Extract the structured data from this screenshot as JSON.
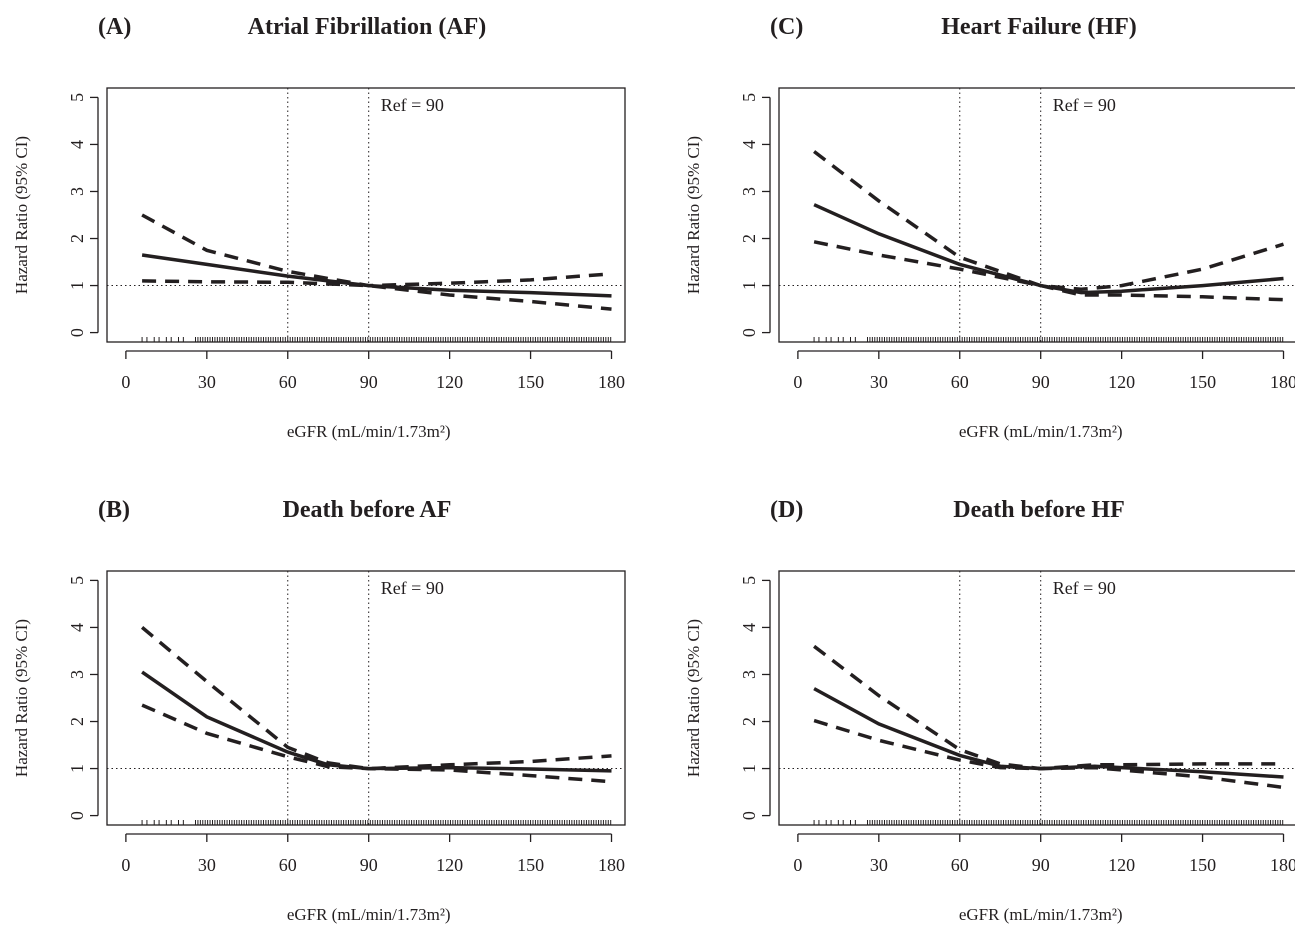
{
  "chart_data": [
    {
      "type": "line",
      "panel_letter": "(A)",
      "title": "Atrial Fibrillation (AF)",
      "xlabel": "eGFR (mL/min/1.73m²)",
      "ylabel": "Hazard Ratio (95% CI)",
      "xlim": [
        -7,
        185
      ],
      "ylim": [
        -0.2,
        5.2
      ],
      "xticks": [
        0,
        30,
        60,
        90,
        120,
        150,
        180
      ],
      "yticks": [
        0,
        1,
        2,
        3,
        4,
        5
      ],
      "reference_label": "Ref = 90",
      "vertical_lines": [
        60,
        90
      ],
      "horizontal_line": 1,
      "grid": false,
      "rug_range": [
        6,
        180
      ],
      "x": [
        6,
        30,
        60,
        90,
        120,
        150,
        180
      ],
      "series": [
        {
          "role": "estimate",
          "values": [
            1.65,
            1.45,
            1.2,
            1.0,
            0.9,
            0.85,
            0.78
          ]
        },
        {
          "role": "ci_upper",
          "values": [
            2.5,
            1.75,
            1.3,
            1.0,
            1.05,
            1.12,
            1.25
          ]
        },
        {
          "role": "ci_lower",
          "values": [
            1.1,
            1.08,
            1.07,
            1.0,
            0.8,
            0.66,
            0.5
          ]
        }
      ]
    },
    {
      "type": "line",
      "panel_letter": "(B)",
      "title": "Death before AF",
      "xlabel": "eGFR (mL/min/1.73m²)",
      "ylabel": "Hazard Ratio (95% CI)",
      "xlim": [
        -7,
        185
      ],
      "ylim": [
        -0.2,
        5.2
      ],
      "xticks": [
        0,
        30,
        60,
        90,
        120,
        150,
        180
      ],
      "yticks": [
        0,
        1,
        2,
        3,
        4,
        5
      ],
      "reference_label": "Ref = 90",
      "vertical_lines": [
        60,
        90
      ],
      "horizontal_line": 1,
      "grid": false,
      "rug_range": [
        6,
        180
      ],
      "x": [
        6,
        30,
        60,
        75,
        90,
        120,
        150,
        180
      ],
      "series": [
        {
          "role": "estimate",
          "values": [
            3.05,
            2.1,
            1.35,
            1.08,
            1.0,
            1.02,
            0.99,
            0.95
          ]
        },
        {
          "role": "ci_upper",
          "values": [
            4.0,
            2.85,
            1.45,
            1.12,
            1.0,
            1.08,
            1.15,
            1.27
          ]
        },
        {
          "role": "ci_lower",
          "values": [
            2.35,
            1.75,
            1.25,
            1.04,
            1.0,
            0.97,
            0.85,
            0.72
          ]
        }
      ]
    },
    {
      "type": "line",
      "panel_letter": "(C)",
      "title": "Heart Failure (HF)",
      "xlabel": "eGFR (mL/min/1.73m²)",
      "ylabel": "Hazard Ratio (95% CI)",
      "xlim": [
        -7,
        185
      ],
      "ylim": [
        -0.2,
        5.2
      ],
      "xticks": [
        0,
        30,
        60,
        90,
        120,
        150,
        180
      ],
      "yticks": [
        0,
        1,
        2,
        3,
        4,
        5
      ],
      "reference_label": "Ref = 90",
      "vertical_lines": [
        60,
        90
      ],
      "horizontal_line": 1,
      "grid": false,
      "rug_range": [
        6,
        180
      ],
      "x": [
        6,
        30,
        60,
        90,
        105,
        120,
        150,
        180
      ],
      "series": [
        {
          "role": "estimate",
          "values": [
            2.72,
            2.1,
            1.45,
            1.0,
            0.85,
            0.88,
            1.0,
            1.15
          ]
        },
        {
          "role": "ci_upper",
          "values": [
            3.85,
            2.8,
            1.6,
            1.0,
            0.92,
            1.0,
            1.35,
            1.88
          ]
        },
        {
          "role": "ci_lower",
          "values": [
            1.93,
            1.65,
            1.35,
            1.0,
            0.8,
            0.8,
            0.76,
            0.7
          ]
        }
      ]
    },
    {
      "type": "line",
      "panel_letter": "(D)",
      "title": "Death before HF",
      "xlabel": "eGFR (mL/min/1.73m²)",
      "ylabel": "Hazard Ratio (95% CI)",
      "xlim": [
        -7,
        185
      ],
      "ylim": [
        -0.2,
        5.2
      ],
      "xticks": [
        0,
        30,
        60,
        90,
        120,
        150,
        180
      ],
      "yticks": [
        0,
        1,
        2,
        3,
        4,
        5
      ],
      "reference_label": "Ref = 90",
      "vertical_lines": [
        60,
        90
      ],
      "horizontal_line": 1,
      "grid": false,
      "rug_range": [
        6,
        180
      ],
      "x": [
        6,
        30,
        60,
        75,
        90,
        110,
        120,
        150,
        180
      ],
      "series": [
        {
          "role": "estimate",
          "values": [
            2.7,
            1.95,
            1.28,
            1.05,
            1.0,
            1.05,
            1.02,
            0.93,
            0.82
          ]
        },
        {
          "role": "ci_upper",
          "values": [
            3.6,
            2.55,
            1.4,
            1.1,
            1.0,
            1.08,
            1.08,
            1.1,
            1.1
          ]
        },
        {
          "role": "ci_lower",
          "values": [
            2.02,
            1.6,
            1.18,
            1.02,
            1.0,
            1.02,
            0.97,
            0.82,
            0.6
          ]
        }
      ]
    }
  ]
}
